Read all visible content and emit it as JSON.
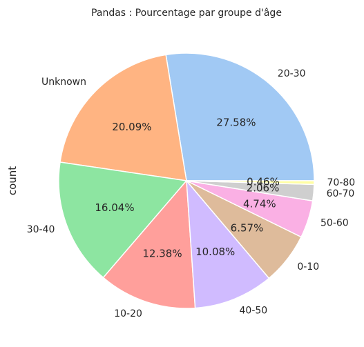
{
  "chart_data": {
    "type": "pie",
    "title": "Pandas : Pourcentage par groupe d'âge",
    "ylabel": "count",
    "start_angle_deg": 0,
    "direction": "counterclockwise",
    "slices": [
      {
        "label": "20-30",
        "percent": 27.58,
        "color": "#a1c9f4"
      },
      {
        "label": "Unknown",
        "percent": 20.09,
        "color": "#ffb482"
      },
      {
        "label": "30-40",
        "percent": 16.04,
        "color": "#8de5a1"
      },
      {
        "label": "10-20",
        "percent": 12.38,
        "color": "#ff9f9b"
      },
      {
        "label": "40-50",
        "percent": 10.08,
        "color": "#d0bbff"
      },
      {
        "label": "0-10",
        "percent": 6.57,
        "color": "#debb9b"
      },
      {
        "label": "50-60",
        "percent": 4.74,
        "color": "#fab0e4"
      },
      {
        "label": "60-70",
        "percent": 2.06,
        "color": "#cfcfcf"
      },
      {
        "label": "70-80",
        "percent": 0.46,
        "color": "#fffea3"
      }
    ]
  }
}
